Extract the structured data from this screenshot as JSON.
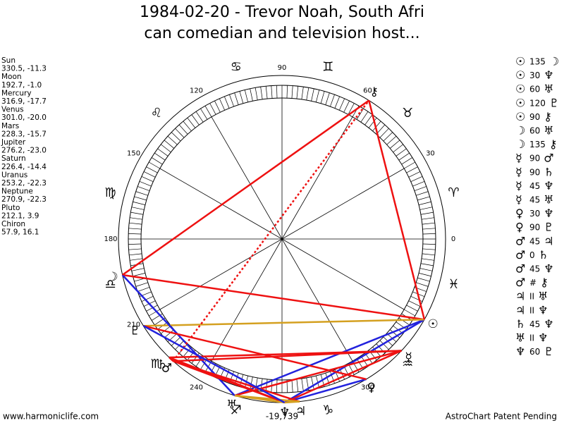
{
  "title": [
    "1984-02-20 - Trevor Noah, South Afri",
    "can comedian and television host..."
  ],
  "planets": [
    {
      "name": "Sun",
      "glyph": "☉",
      "coords": "330.5, -11.3"
    },
    {
      "name": "Moon",
      "glyph": "☽",
      "coords": "192.7, -1.0"
    },
    {
      "name": "Mercury",
      "glyph": "☿",
      "coords": "316.9, -17.7"
    },
    {
      "name": "Venus",
      "glyph": "♀",
      "coords": "301.0, -20.0"
    },
    {
      "name": "Mars",
      "glyph": "♂",
      "coords": "228.3, -15.7"
    },
    {
      "name": "Jupiter",
      "glyph": "♃",
      "coords": "276.2, -23.0"
    },
    {
      "name": "Saturn",
      "glyph": "♄",
      "coords": "226.4, -14.4"
    },
    {
      "name": "Uranus",
      "glyph": "♅",
      "coords": "253.2, -22.3"
    },
    {
      "name": "Neptune",
      "glyph": "♆",
      "coords": "270.9, -22.3"
    },
    {
      "name": "Pluto",
      "glyph": "♇",
      "coords": "212.1, 3.9"
    },
    {
      "name": "Chiron",
      "glyph": "⚷",
      "coords": "57.9, 16.1"
    }
  ],
  "aspects": [
    {
      "from": "☉",
      "aspect": "135",
      "to": "☽",
      "color": "#ee1111"
    },
    {
      "from": "☉",
      "aspect": "30",
      "to": "♆",
      "color": "#2222dd"
    },
    {
      "from": "☉",
      "aspect": "60",
      "to": "♅",
      "color": "#2222dd"
    },
    {
      "from": "☉",
      "aspect": "120",
      "to": "♇",
      "color": "#d4a020"
    },
    {
      "from": "☉",
      "aspect": "90",
      "to": "⚷",
      "color": "#ee1111"
    },
    {
      "from": "☽",
      "aspect": "60",
      "to": "♅",
      "color": "#2222dd"
    },
    {
      "from": "☽",
      "aspect": "135",
      "to": "⚷",
      "color": "#ee1111"
    },
    {
      "from": "☿",
      "aspect": "90",
      "to": "♂",
      "color": "#ee1111"
    },
    {
      "from": "☿",
      "aspect": "90",
      "to": "♄",
      "color": "#ee1111"
    },
    {
      "from": "☿",
      "aspect": "45",
      "to": "♆",
      "color": "#ee1111"
    },
    {
      "from": "☿",
      "aspect": "45",
      "to": "♅",
      "color": "#ee1111"
    },
    {
      "from": "♀",
      "aspect": "30",
      "to": "♆",
      "color": "#2222dd"
    },
    {
      "from": "♀",
      "aspect": "90",
      "to": "♇",
      "color": "#ee1111"
    },
    {
      "from": "♂",
      "aspect": "45",
      "to": "♃",
      "color": "#ee1111"
    },
    {
      "from": "♂",
      "aspect": "0",
      "to": "♄",
      "color": "#ee1111"
    },
    {
      "from": "♂",
      "aspect": "45",
      "to": "♆",
      "color": "#ee1111"
    },
    {
      "from": "♂",
      "aspect": "#",
      "to": "⚷",
      "color": "#ee1111"
    },
    {
      "from": "♃",
      "aspect": "II",
      "to": "♅",
      "color": "#d4a020"
    },
    {
      "from": "♃",
      "aspect": "II",
      "to": "♆",
      "color": "#d4a020"
    },
    {
      "from": "♄",
      "aspect": "45",
      "to": "♆",
      "color": "#ee1111"
    },
    {
      "from": "♅",
      "aspect": "II",
      "to": "♆",
      "color": "#d4a020"
    },
    {
      "from": "♆",
      "aspect": "60",
      "to": "♇",
      "color": "#2222dd"
    }
  ],
  "signs": [
    "♈",
    "♉",
    "♊",
    "♋",
    "♌",
    "♍",
    "♎",
    "♏",
    "♐",
    "♑",
    "♒",
    "♓"
  ],
  "degree_labels": [
    0,
    30,
    60,
    90,
    120,
    150,
    180,
    210,
    240,
    300
  ],
  "center_value": "-19,739",
  "footer": {
    "left": "www.harmoniclife.com",
    "right": "AstroChart Patent Pending"
  }
}
